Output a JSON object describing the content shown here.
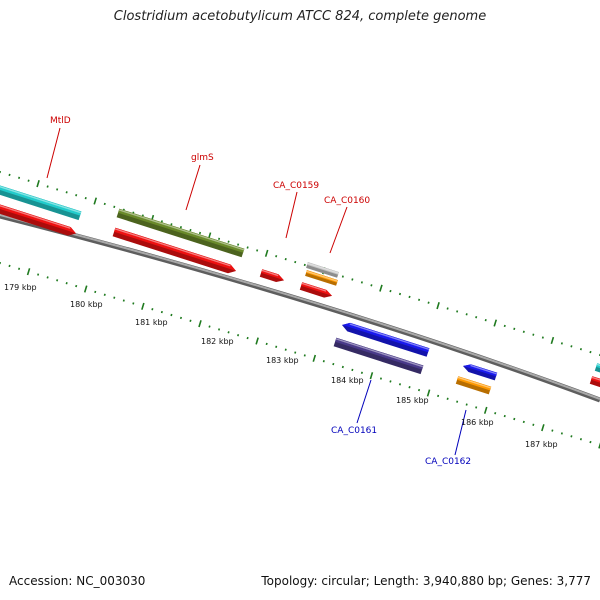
{
  "title": "Clostridium acetobutylicum ATCC 824, complete genome",
  "accession_text": "Accession: NC_003030",
  "topology_text": "Topology: circular; Length: 3,940,880 bp; Genes: 3,777",
  "colors": {
    "backbone": "#8a8a8a",
    "ticks": "#1f7a1f",
    "gene_red": "#ee1111",
    "gene_olive": "#6a8a2a",
    "gene_cyan": "#22cccc",
    "gene_blue": "#1a1aee",
    "gene_purple": "#4a3a8a",
    "gene_orange": "#ff9900",
    "gene_grey": "#c4c4c4",
    "label_red": "#cc0000",
    "label_blue": "#0000bb"
  },
  "scale_labels": [
    "179 kbp",
    "180 kbp",
    "181 kbp",
    "182 kbp",
    "183 kbp",
    "184 kbp",
    "185 kbp",
    "186 kbp",
    "187 kbp"
  ],
  "gene_labels": [
    {
      "text": "MtlD",
      "color": "label_red"
    },
    {
      "text": "glmS",
      "color": "label_red"
    },
    {
      "text": "CA_C0159",
      "color": "label_red"
    },
    {
      "text": "CA_C0160",
      "color": "label_red"
    },
    {
      "text": "CA_C0161",
      "color": "label_blue"
    },
    {
      "text": "CA_C0162",
      "color": "label_blue"
    }
  ]
}
